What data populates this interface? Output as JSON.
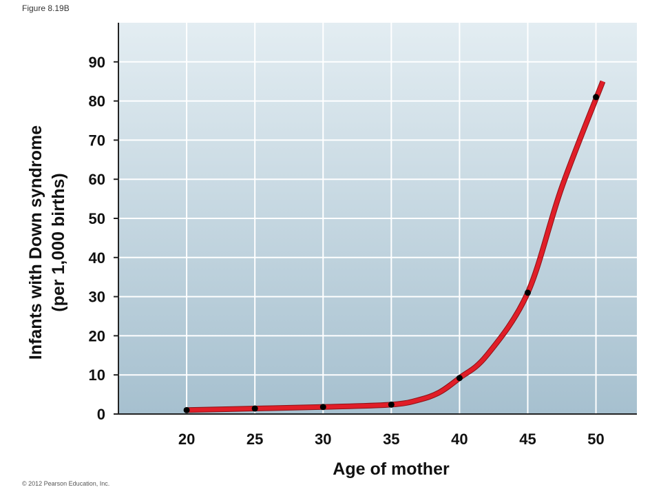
{
  "figure_label": "Figure 8.19B",
  "copyright": "© 2012 Pearson Education, Inc.",
  "chart_data": {
    "type": "line",
    "title": "",
    "xlabel": "Age of mother",
    "ylabel_lines": [
      "Infants with Down syndrome",
      "(per 1,000 births)"
    ],
    "xlim": [
      15,
      53
    ],
    "ylim": [
      0,
      100
    ],
    "x_ticks": [
      20,
      25,
      30,
      35,
      40,
      45,
      50
    ],
    "y_ticks": [
      0,
      10,
      20,
      30,
      40,
      50,
      60,
      70,
      80,
      90
    ],
    "grid": true,
    "series": [
      {
        "x": [
          20,
          25,
          30,
          35,
          40,
          45,
          50
        ],
        "y": [
          1,
          1.4,
          1.8,
          2.4,
          9.2,
          31,
          81
        ]
      }
    ],
    "curve": {
      "x": [
        20,
        25,
        30,
        35,
        37,
        38.5,
        40,
        42,
        45,
        47.5,
        50.5
      ],
      "y": [
        1,
        1.4,
        1.8,
        2.4,
        3.6,
        5.5,
        9.2,
        15,
        31,
        58,
        85
      ]
    },
    "colors": {
      "line": "#e01e28",
      "line_edge": "#8c1015",
      "points": "#000000",
      "background_top": "#e3edf2",
      "background_bottom": "#a6c0cf",
      "grid": "#ffffff",
      "axis": "#222222"
    }
  }
}
